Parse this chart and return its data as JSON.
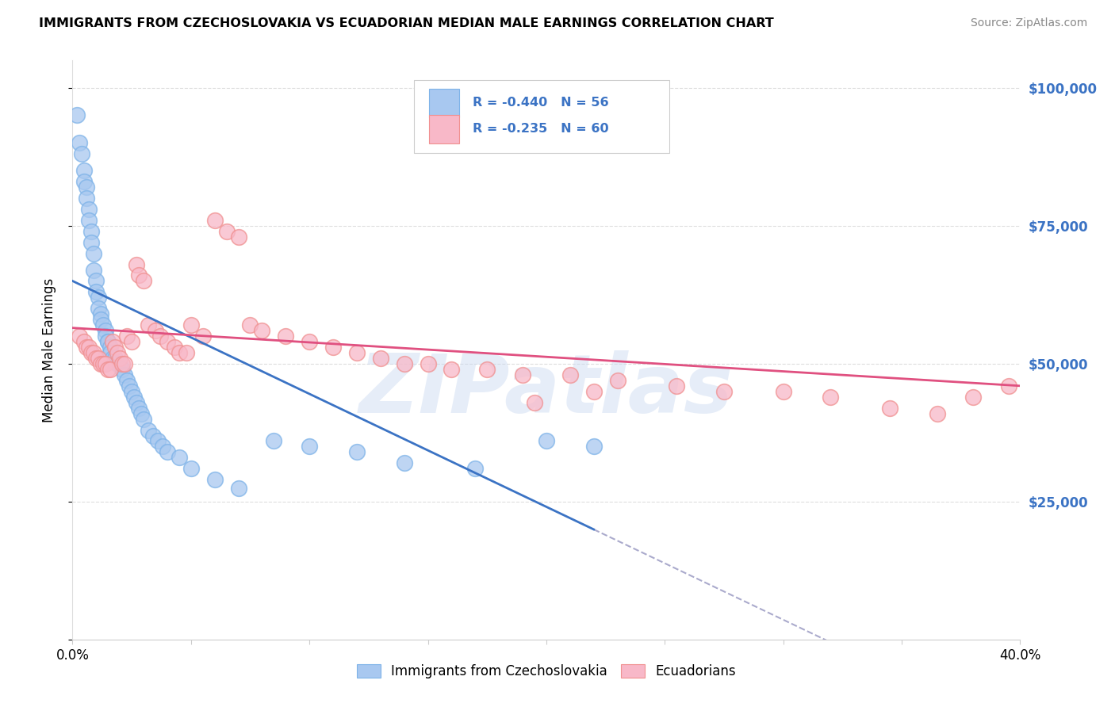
{
  "title": "IMMIGRANTS FROM CZECHOSLOVAKIA VS ECUADORIAN MEDIAN MALE EARNINGS CORRELATION CHART",
  "source": "Source: ZipAtlas.com",
  "ylabel": "Median Male Earnings",
  "y_ticks": [
    0,
    25000,
    50000,
    75000,
    100000
  ],
  "y_tick_labels": [
    "",
    "$25,000",
    "$50,000",
    "$75,000",
    "$100,000"
  ],
  "x_min": 0.0,
  "x_max": 0.4,
  "y_min": 0,
  "y_max": 105000,
  "legend_text_blue": "R = -0.440   N = 56",
  "legend_text_pink": "R = -0.235   N = 60",
  "legend_blue_label": "Immigrants from Czechoslovakia",
  "legend_pink_label": "Ecuadorians",
  "blue_marker_color": "#A8C8F0",
  "blue_marker_edge": "#7EB3E8",
  "pink_marker_color": "#F8B8C8",
  "pink_marker_edge": "#F09090",
  "blue_line_color": "#3B73C4",
  "pink_line_color": "#E05080",
  "dash_color": "#AAAACC",
  "watermark_color": "#C8D8F0",
  "grid_color": "#DDDDDD",
  "right_tick_color": "#3B73C4",
  "blue_scatter_x": [
    0.002,
    0.003,
    0.004,
    0.005,
    0.005,
    0.006,
    0.006,
    0.007,
    0.007,
    0.008,
    0.008,
    0.009,
    0.009,
    0.01,
    0.01,
    0.011,
    0.011,
    0.012,
    0.012,
    0.013,
    0.014,
    0.014,
    0.015,
    0.015,
    0.016,
    0.016,
    0.017,
    0.018,
    0.019,
    0.02,
    0.021,
    0.022,
    0.023,
    0.024,
    0.025,
    0.026,
    0.027,
    0.028,
    0.029,
    0.03,
    0.032,
    0.034,
    0.036,
    0.038,
    0.04,
    0.045,
    0.05,
    0.06,
    0.07,
    0.085,
    0.1,
    0.12,
    0.14,
    0.17,
    0.2,
    0.22
  ],
  "blue_scatter_y": [
    95000,
    90000,
    88000,
    85000,
    83000,
    82000,
    80000,
    78000,
    76000,
    74000,
    72000,
    70000,
    67000,
    65000,
    63000,
    62000,
    60000,
    59000,
    58000,
    57000,
    56000,
    55000,
    54000,
    54000,
    53000,
    52000,
    51000,
    51000,
    50000,
    50000,
    49000,
    48000,
    47000,
    46000,
    45000,
    44000,
    43000,
    42000,
    41000,
    40000,
    38000,
    37000,
    36000,
    35000,
    34000,
    33000,
    31000,
    29000,
    27500,
    36000,
    35000,
    34000,
    32000,
    31000,
    36000,
    35000
  ],
  "pink_scatter_x": [
    0.003,
    0.005,
    0.006,
    0.007,
    0.008,
    0.009,
    0.01,
    0.011,
    0.012,
    0.013,
    0.014,
    0.015,
    0.016,
    0.017,
    0.018,
    0.019,
    0.02,
    0.021,
    0.022,
    0.023,
    0.025,
    0.027,
    0.028,
    0.03,
    0.032,
    0.035,
    0.037,
    0.04,
    0.043,
    0.045,
    0.048,
    0.05,
    0.055,
    0.06,
    0.065,
    0.07,
    0.075,
    0.08,
    0.09,
    0.1,
    0.11,
    0.12,
    0.13,
    0.14,
    0.15,
    0.16,
    0.175,
    0.19,
    0.21,
    0.23,
    0.255,
    0.275,
    0.3,
    0.32,
    0.345,
    0.365,
    0.38,
    0.395,
    0.195,
    0.22
  ],
  "pink_scatter_y": [
    55000,
    54000,
    53000,
    53000,
    52000,
    52000,
    51000,
    51000,
    50000,
    50000,
    50000,
    49000,
    49000,
    54000,
    53000,
    52000,
    51000,
    50000,
    50000,
    55000,
    54000,
    68000,
    66000,
    65000,
    57000,
    56000,
    55000,
    54000,
    53000,
    52000,
    52000,
    57000,
    55000,
    76000,
    74000,
    73000,
    57000,
    56000,
    55000,
    54000,
    53000,
    52000,
    51000,
    50000,
    50000,
    49000,
    49000,
    48000,
    48000,
    47000,
    46000,
    45000,
    45000,
    44000,
    42000,
    41000,
    44000,
    46000,
    43000,
    45000
  ]
}
